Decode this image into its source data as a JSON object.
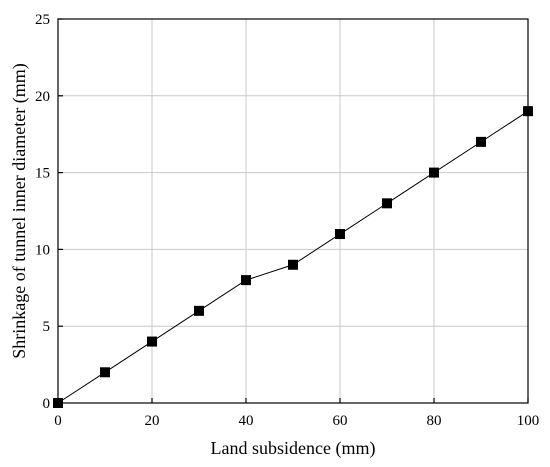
{
  "chart_data": {
    "type": "line",
    "title": "",
    "xlabel": "Land subsidence (mm)",
    "ylabel": "Shrinkage of tunnel inner diameter (mm)",
    "xlim": [
      0,
      100
    ],
    "ylim": [
      0,
      25
    ],
    "x_ticks": [
      0,
      20,
      40,
      60,
      80,
      100
    ],
    "y_ticks": [
      0,
      5,
      10,
      15,
      20,
      25
    ],
    "grid": true,
    "legend": "none",
    "series": [
      {
        "marker": "square",
        "color": "#000000",
        "x": [
          0,
          10,
          20,
          30,
          40,
          50,
          60,
          70,
          80,
          90,
          100
        ],
        "y": [
          0,
          2,
          4,
          6,
          8,
          9,
          11,
          13,
          15,
          17,
          19
        ]
      }
    ]
  }
}
